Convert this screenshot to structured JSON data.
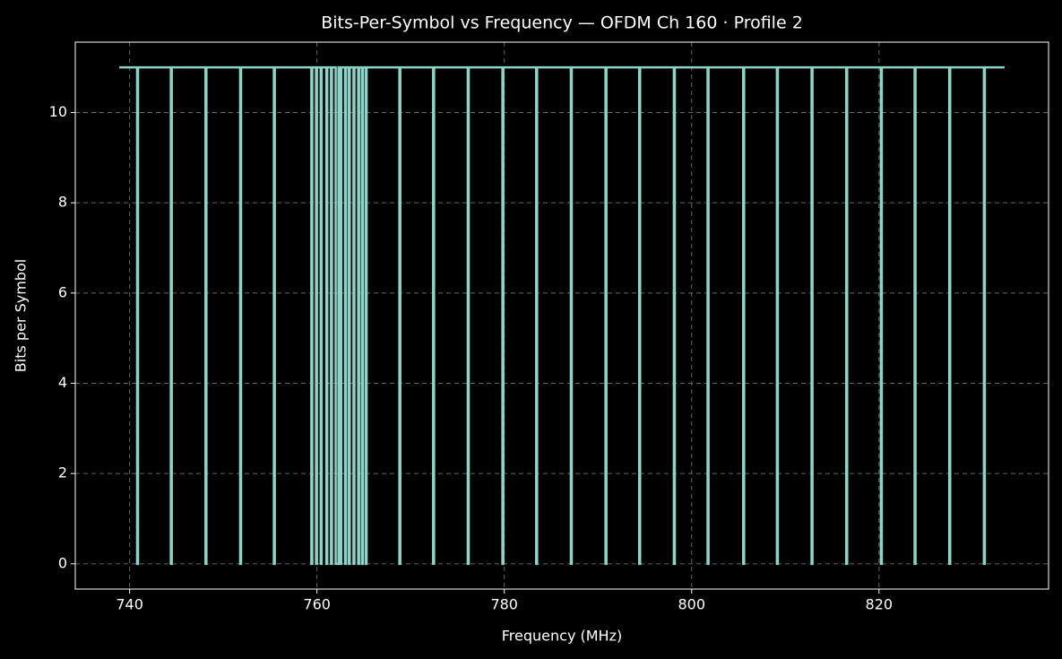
{
  "chart_data": {
    "type": "line",
    "title": "Bits-Per-Symbol vs Frequency — OFDM Ch 160 · Profile 2",
    "x_label": "Frequency (MHz)",
    "y_label": "Bits per Symbol",
    "color": "#8dd3c7",
    "grid": true,
    "xlim": [
      734.2,
      838.1
    ],
    "ylim": [
      -0.56,
      11.56
    ],
    "xticks": [
      740,
      760,
      780,
      800,
      820
    ],
    "yticks": [
      0,
      2,
      4,
      6,
      8,
      10
    ],
    "x": [
      738.9,
      740.8,
      740.8,
      740.9,
      740.9,
      744.4,
      744.4,
      744.5,
      744.5,
      748.1,
      748.1,
      748.2,
      748.2,
      751.8,
      751.8,
      751.9,
      751.9,
      755.4,
      755.4,
      755.5,
      755.5,
      759.4,
      759.4,
      759.5,
      759.5,
      759.9,
      759.9,
      760.0,
      760.0,
      760.4,
      760.4,
      760.5,
      760.5,
      761.0,
      761.0,
      761.1,
      761.1,
      761.5,
      761.5,
      761.6,
      761.6,
      762.0,
      762.0,
      762.3,
      762.3,
      762.5,
      762.5,
      762.6,
      762.6,
      763.0,
      763.0,
      763.1,
      763.1,
      763.4,
      763.4,
      763.5,
      763.5,
      763.9,
      763.9,
      764.0,
      764.0,
      764.4,
      764.4,
      764.5,
      764.5,
      764.8,
      764.8,
      764.9,
      764.9,
      765.2,
      765.2,
      765.3,
      765.3,
      768.8,
      768.8,
      768.9,
      768.9,
      772.4,
      772.4,
      772.5,
      772.5,
      776.1,
      776.1,
      776.2,
      776.2,
      779.8,
      779.8,
      779.9,
      779.9,
      783.4,
      783.4,
      783.5,
      783.5,
      787.1,
      787.1,
      787.2,
      787.2,
      790.8,
      790.8,
      790.9,
      790.9,
      794.4,
      794.4,
      794.5,
      794.5,
      798.1,
      798.1,
      798.2,
      798.2,
      801.7,
      801.7,
      801.8,
      801.8,
      805.5,
      805.5,
      805.6,
      805.6,
      809.1,
      809.1,
      809.2,
      809.2,
      812.8,
      812.8,
      812.9,
      812.9,
      816.5,
      816.5,
      816.6,
      816.6,
      820.2,
      820.2,
      820.3,
      820.3,
      823.8,
      823.8,
      823.9,
      823.9,
      827.5,
      827.5,
      827.6,
      827.6,
      831.2,
      831.2,
      831.3,
      831.3,
      833.4
    ],
    "values": [
      11,
      11,
      0,
      0,
      11,
      11,
      0,
      0,
      11,
      11,
      0,
      0,
      11,
      11,
      0,
      0,
      11,
      11,
      0,
      0,
      11,
      11,
      0,
      0,
      11,
      11,
      0,
      0,
      11,
      11,
      0,
      0,
      11,
      11,
      0,
      0,
      11,
      11,
      0,
      0,
      11,
      11,
      0,
      0,
      11,
      11,
      0,
      0,
      11,
      11,
      0,
      0,
      11,
      11,
      0,
      0,
      11,
      11,
      0,
      0,
      11,
      11,
      0,
      0,
      11,
      11,
      0,
      0,
      11,
      11,
      0,
      0,
      11,
      11,
      0,
      0,
      11,
      11,
      0,
      0,
      11,
      11,
      0,
      0,
      11,
      11,
      0,
      0,
      11,
      11,
      0,
      0,
      11,
      11,
      0,
      0,
      11,
      11,
      0,
      0,
      11,
      11,
      0,
      0,
      11,
      11,
      0,
      0,
      11,
      11,
      0,
      0,
      11,
      11,
      0,
      0,
      11,
      11,
      0,
      0,
      11,
      11,
      0,
      0,
      11,
      11,
      0,
      0,
      11,
      11,
      0,
      0,
      11,
      11,
      0,
      0,
      11,
      11,
      0,
      0,
      11,
      11,
      0,
      0,
      11,
      11
    ]
  }
}
